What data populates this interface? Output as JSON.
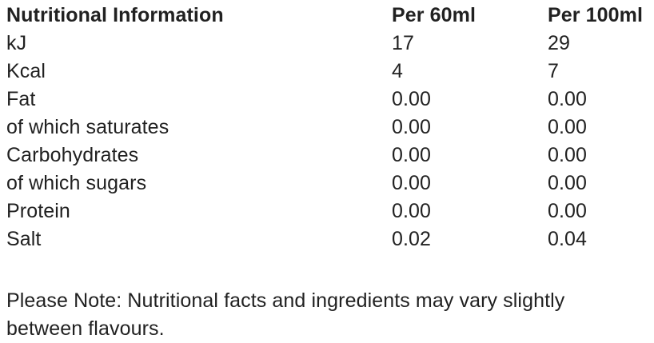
{
  "table": {
    "header": {
      "label": "Nutritional Information",
      "col_per60": "Per 60ml",
      "col_per100": "Per 100ml"
    },
    "rows": [
      {
        "label": "kJ",
        "per60": "17",
        "per100": "29"
      },
      {
        "label": "Kcal",
        "per60": "4",
        "per100": "7"
      },
      {
        "label": "Fat",
        "per60": "0.00",
        "per100": "0.00"
      },
      {
        "label": "of which saturates",
        "per60": "0.00",
        "per100": "0.00"
      },
      {
        "label": "Carbohydrates",
        "per60": "0.00",
        "per100": "0.00"
      },
      {
        "label": "of which sugars",
        "per60": "0.00",
        "per100": "0.00"
      },
      {
        "label": "Protein",
        "per60": "0.00",
        "per100": "0.00"
      },
      {
        "label": "Salt",
        "per60": "0.02",
        "per100": "0.04"
      }
    ]
  },
  "note": {
    "line1": "Please Note: Nutritional facts and ingredients may vary slightly",
    "line2": "between flavours."
  },
  "colors": {
    "text": "#212121",
    "background": "#ffffff"
  }
}
